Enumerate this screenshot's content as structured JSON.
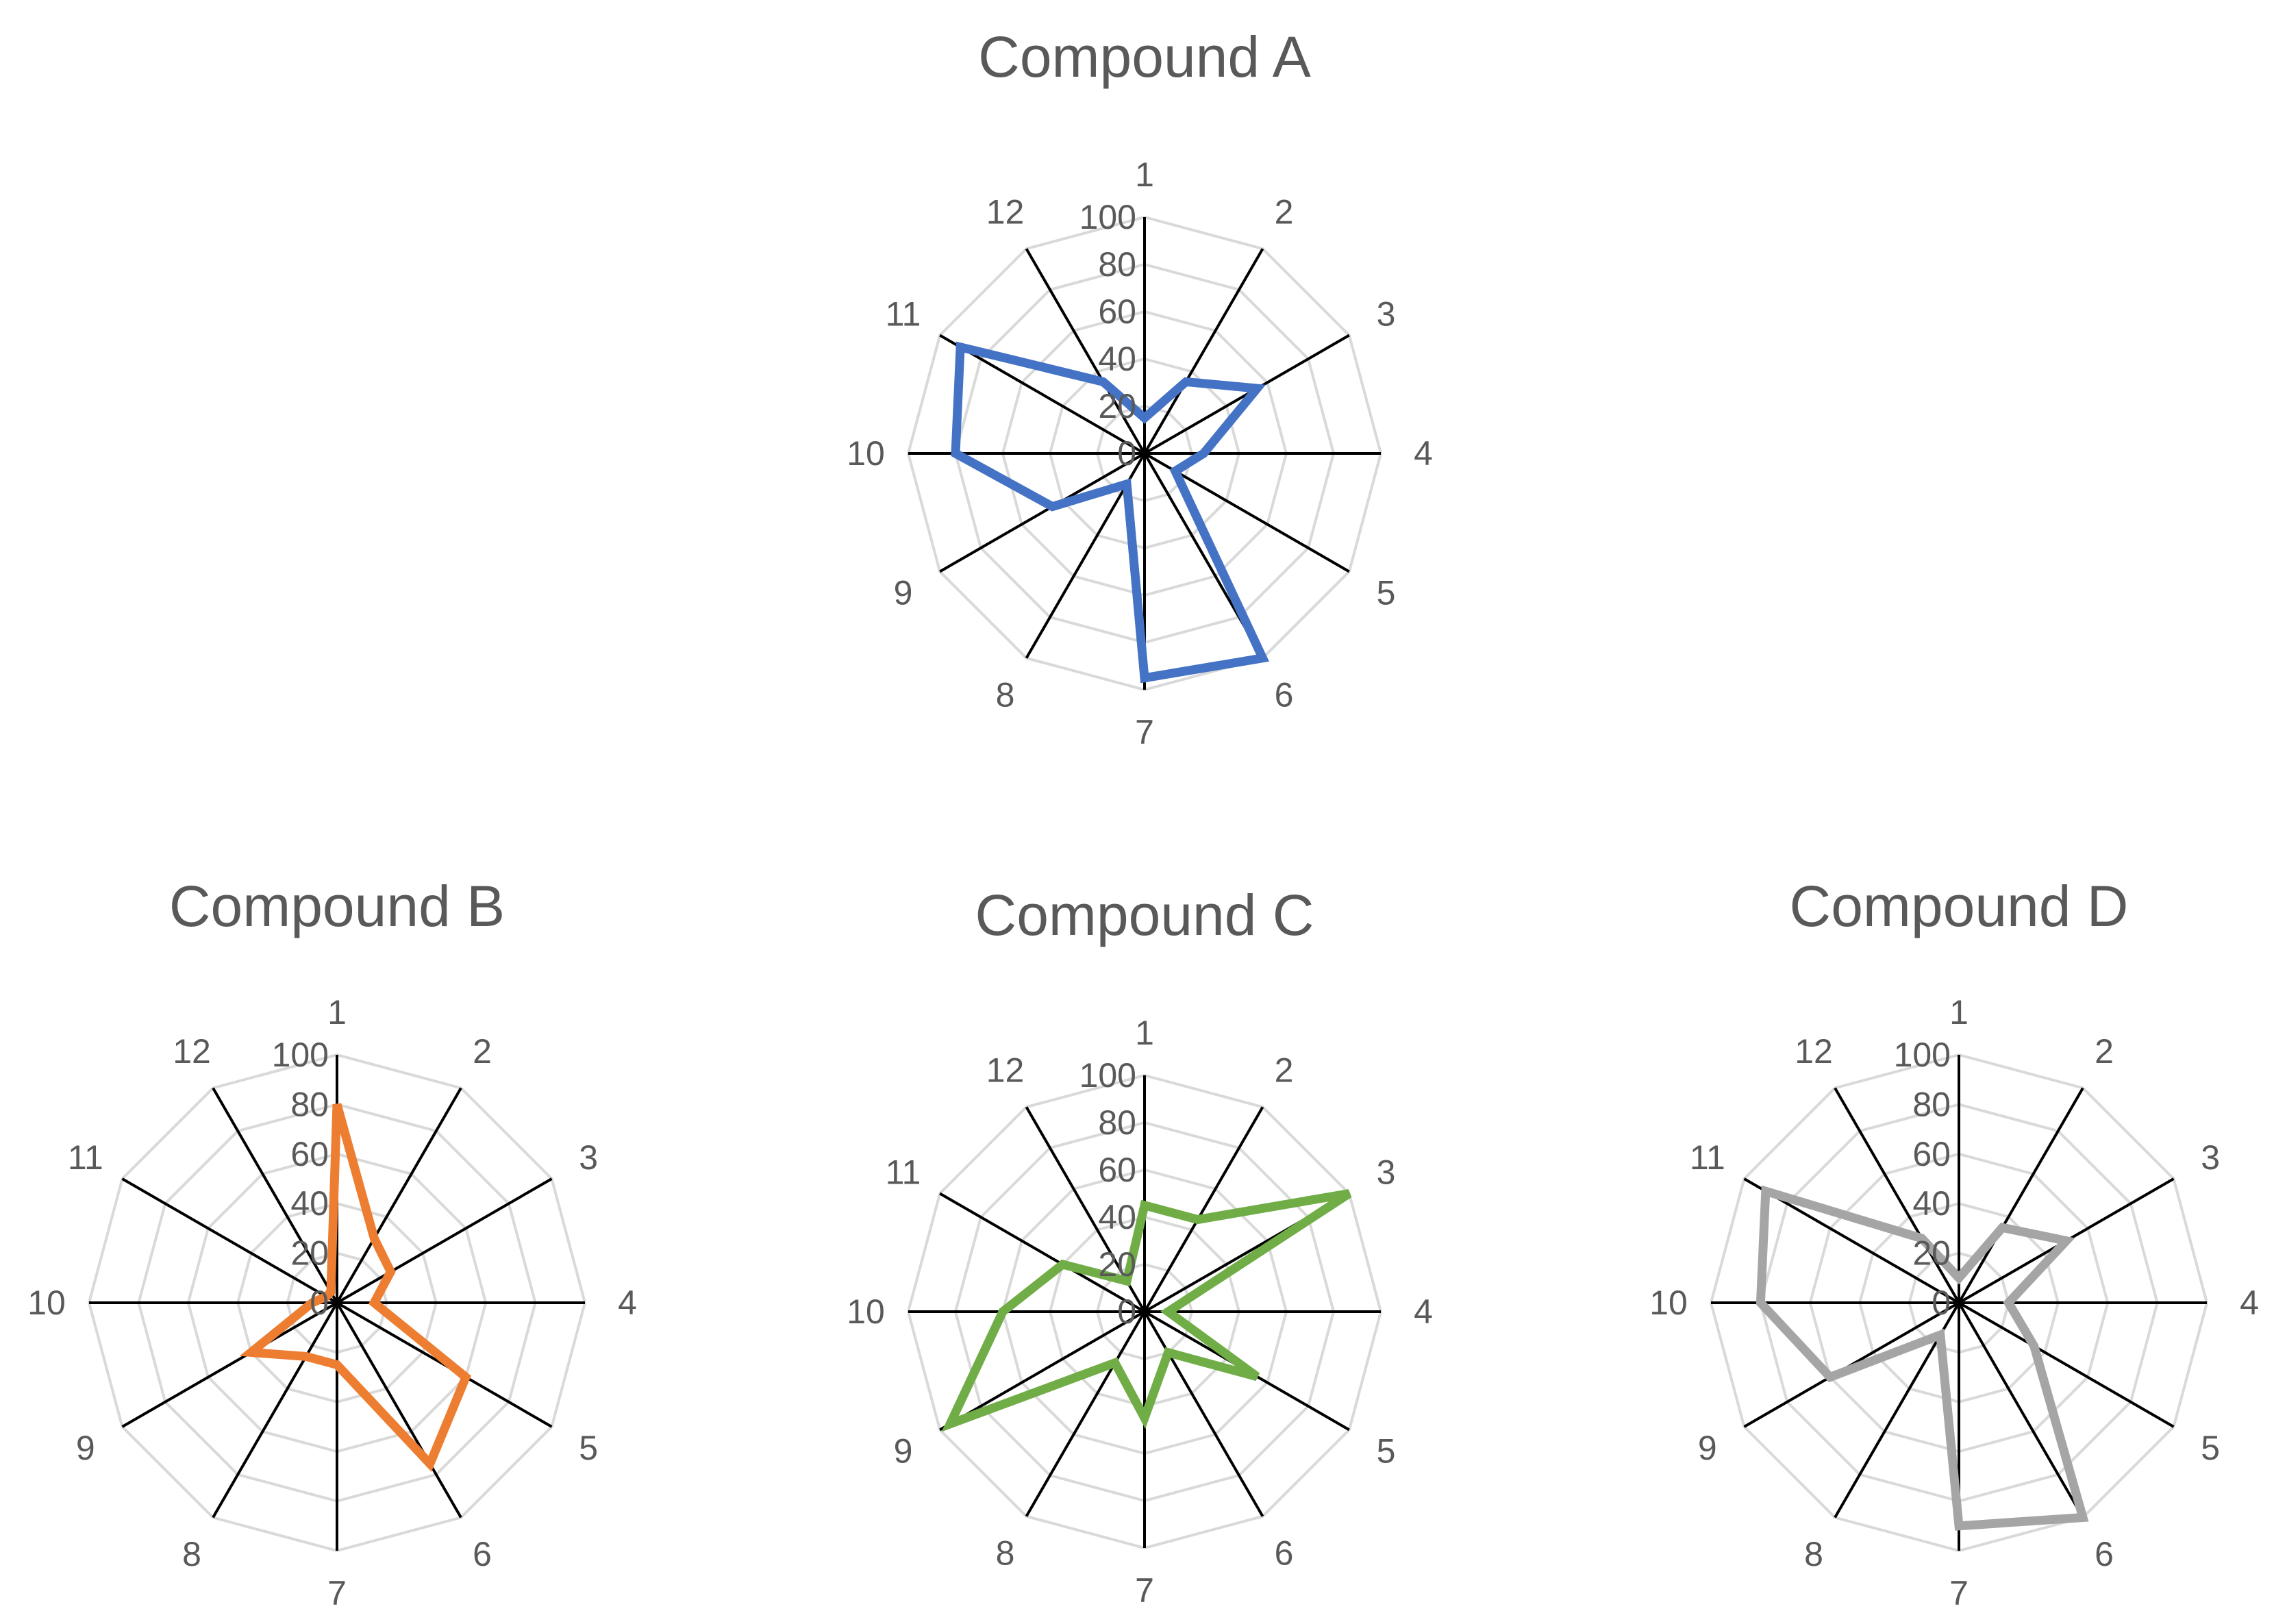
{
  "figure_colors": {
    "grid": "#d9d9d9",
    "spoke": "#000000",
    "text": "#595959"
  },
  "chart_data": [
    {
      "type": "radar",
      "title": "Compound A",
      "categories": [
        "1",
        "2",
        "3",
        "4",
        "5",
        "6",
        "7",
        "8",
        "9",
        "10",
        "11",
        "12"
      ],
      "rlim": [
        0,
        100
      ],
      "ticks": [
        "0",
        "20",
        "40",
        "60",
        "80",
        "100"
      ],
      "series": [
        {
          "name": "Compound A",
          "color": "#4472c4",
          "values": [
            15,
            35,
            55,
            25,
            15,
            100,
            95,
            15,
            45,
            80,
            90,
            35
          ]
        }
      ]
    },
    {
      "type": "radar",
      "title": "Compound B",
      "categories": [
        "1",
        "2",
        "3",
        "4",
        "5",
        "6",
        "7",
        "8",
        "9",
        "10",
        "11",
        "12"
      ],
      "rlim": [
        0,
        100
      ],
      "ticks": [
        "0",
        "20",
        "40",
        "60",
        "80",
        "100"
      ],
      "series": [
        {
          "name": "Compound B",
          "color": "#ed7d31",
          "values": [
            80,
            30,
            25,
            15,
            60,
            75,
            25,
            25,
            40,
            10,
            5,
            5
          ]
        }
      ]
    },
    {
      "type": "radar",
      "title": "Compound C",
      "categories": [
        "1",
        "2",
        "3",
        "4",
        "5",
        "6",
        "7",
        "8",
        "9",
        "10",
        "11",
        "12"
      ],
      "rlim": [
        0,
        100
      ],
      "ticks": [
        "0",
        "20",
        "40",
        "60",
        "80",
        "100"
      ],
      "series": [
        {
          "name": "Compound C",
          "color": "#70ad47",
          "values": [
            45,
            45,
            100,
            10,
            55,
            20,
            45,
            25,
            95,
            60,
            40,
            15
          ]
        }
      ]
    },
    {
      "type": "radar",
      "title": "Compound D",
      "categories": [
        "1",
        "2",
        "3",
        "4",
        "5",
        "6",
        "7",
        "8",
        "9",
        "10",
        "11",
        "12"
      ],
      "rlim": [
        0,
        100
      ],
      "ticks": [
        "0",
        "20",
        "40",
        "60",
        "80",
        "100"
      ],
      "series": [
        {
          "name": "Compound D",
          "color": "#a5a5a5",
          "values": [
            10,
            35,
            50,
            20,
            35,
            100,
            90,
            15,
            60,
            80,
            90,
            30
          ]
        }
      ]
    }
  ]
}
